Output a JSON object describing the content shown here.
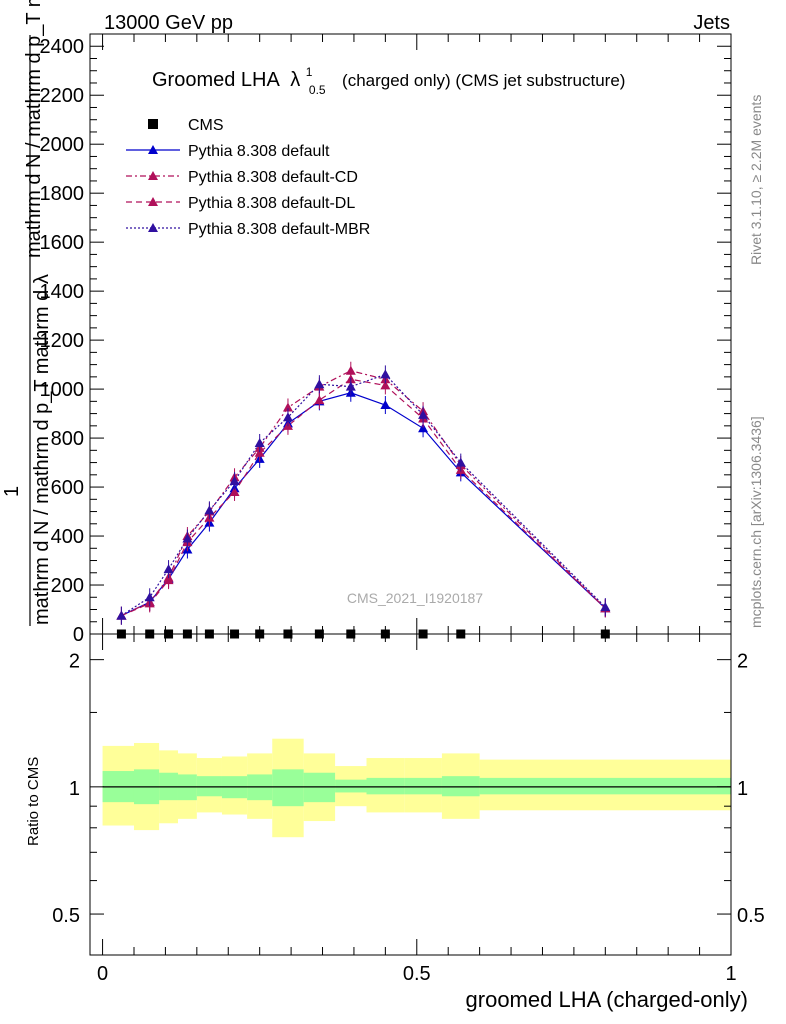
{
  "header": {
    "left": "13000 GeV pp",
    "right": "Jets"
  },
  "side_labels": {
    "rivet": "Rivet 3.1.10, ≥ 2.2M events",
    "mcplots": "mcplots.cern.ch [arXiv:1306.3436]"
  },
  "chart_data": [
    {
      "type": "line",
      "title_main": "Groomed LHA",
      "title_lambda": "λ",
      "title_sup": "1",
      "title_sub": "0.5",
      "title_rest": "(charged only) (CMS jet substructure)",
      "ylabel_numerator": "1",
      "ylabel_denominator": "mathrm d N / mathrm d p_T mathrm d λ",
      "ylabel_top": "mathrm d N / mathrm d p_T mathrm d lambda",
      "watermark": "CMS_2021_I1920187",
      "ylim": [
        0,
        2450
      ],
      "xlim": [
        -0.02,
        1.0
      ],
      "yticks": [
        0,
        200,
        400,
        600,
        800,
        1000,
        1200,
        1400,
        1600,
        1800,
        2000,
        2200,
        2400
      ],
      "legend_position": "top-left",
      "x": [
        0.03,
        0.075,
        0.105,
        0.135,
        0.17,
        0.21,
        0.25,
        0.295,
        0.345,
        0.395,
        0.45,
        0.51,
        0.57,
        0.8
      ],
      "series": [
        {
          "name": "CMS",
          "style": "marker",
          "marker": "square",
          "color": "#000000",
          "values": [
            0,
            0,
            0,
            0,
            0,
            0,
            0,
            0,
            0,
            0,
            0,
            0,
            0,
            0
          ]
        },
        {
          "name": "Pythia 8.308 default",
          "style": "solid",
          "marker": "triangle",
          "color": "#0000cc",
          "values": [
            75,
            130,
            225,
            345,
            455,
            595,
            715,
            860,
            950,
            985,
            935,
            840,
            660,
            105
          ]
        },
        {
          "name": "Pythia 8.308 default-CD",
          "style": "dashdot",
          "marker": "triangle",
          "color": "#b0105a",
          "values": [
            75,
            130,
            230,
            400,
            500,
            640,
            760,
            925,
            1010,
            1075,
            1040,
            910,
            690,
            105
          ]
        },
        {
          "name": "Pythia 8.308 default-DL",
          "style": "dashed",
          "marker": "triangle",
          "color": "#b0105a",
          "values": [
            75,
            125,
            220,
            375,
            475,
            580,
            740,
            850,
            955,
            1040,
            1015,
            880,
            670,
            105
          ]
        },
        {
          "name": "Pythia 8.308 default-MBR",
          "style": "dotted",
          "marker": "triangle",
          "color": "#3010a0",
          "values": [
            75,
            150,
            265,
            390,
            505,
            625,
            780,
            885,
            1020,
            1010,
            1060,
            895,
            700,
            110
          ]
        }
      ]
    },
    {
      "type": "area",
      "ylabel": "Ratio to CMS",
      "xlabel": "groomed LHA (charged-only)",
      "ylim": [
        0.4,
        2.3
      ],
      "xlim": [
        -0.02,
        1.0
      ],
      "xticks": [
        0,
        0.5,
        1
      ],
      "xtick_labels": [
        "0",
        "0.5",
        "1"
      ],
      "yticks": [
        0.5,
        1,
        2
      ],
      "ytick_labels": [
        "0.5",
        "1",
        "2"
      ],
      "bins": [
        0,
        0.05,
        0.09,
        0.12,
        0.15,
        0.19,
        0.23,
        0.27,
        0.32,
        0.37,
        0.42,
        0.48,
        0.54,
        0.6,
        1.0
      ],
      "inner_band_lo": [
        0.92,
        0.91,
        0.93,
        0.93,
        0.95,
        0.94,
        0.93,
        0.9,
        0.92,
        0.97,
        0.96,
        0.96,
        0.95,
        0.96
      ],
      "inner_band_hi": [
        1.09,
        1.1,
        1.08,
        1.07,
        1.06,
        1.06,
        1.07,
        1.1,
        1.08,
        1.04,
        1.05,
        1.05,
        1.06,
        1.05
      ],
      "outer_band_lo": [
        0.81,
        0.79,
        0.82,
        0.84,
        0.87,
        0.86,
        0.84,
        0.76,
        0.83,
        0.9,
        0.87,
        0.87,
        0.84,
        0.88
      ],
      "outer_band_hi": [
        1.25,
        1.27,
        1.22,
        1.2,
        1.17,
        1.18,
        1.2,
        1.3,
        1.2,
        1.12,
        1.17,
        1.17,
        1.2,
        1.16
      ],
      "colors": {
        "inner": "#99ff99",
        "outer": "#ffff99",
        "line": "#000000"
      }
    }
  ]
}
